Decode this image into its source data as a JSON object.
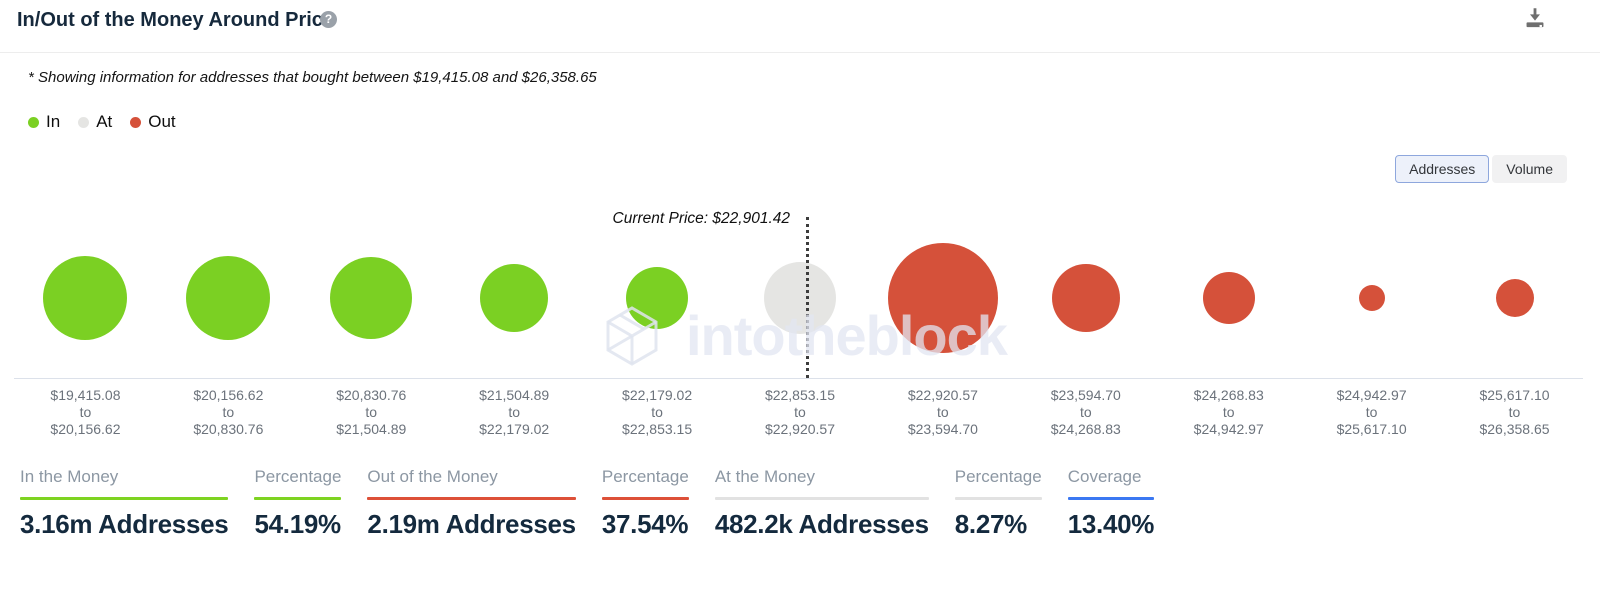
{
  "header": {
    "title": "In/Out of the Money Around Price",
    "help_icon": "question-mark",
    "download_icon": "download"
  },
  "subtitle": "* Showing information for addresses that bought between $19,415.08 and $26,358.65",
  "legend": {
    "items": [
      {
        "label": "In",
        "color": "#7bd023"
      },
      {
        "label": "At",
        "color": "#e5e5e3"
      },
      {
        "label": "Out",
        "color": "#d5513a"
      }
    ]
  },
  "view_toggle": {
    "options": [
      {
        "label": "Addresses",
        "selected": true
      },
      {
        "label": "Volume",
        "selected": false
      }
    ]
  },
  "chart": {
    "current_price_label": "Current Price: $22,901.42",
    "range_separator": "to",
    "watermark_text": "intotheblock"
  },
  "chart_data": {
    "type": "bubble",
    "x_axis": "price range (USD)",
    "value_encoding": "bubble size = number of addresses in range",
    "current_price": 22901.42,
    "status_colors": {
      "in": "#7bd023",
      "at": "#e5e5e3",
      "out": "#d5513a"
    },
    "series": [
      {
        "from": "$19,415.08",
        "to": "$20,156.62",
        "status": "in",
        "radius_px": 42
      },
      {
        "from": "$20,156.62",
        "to": "$20,830.76",
        "status": "in",
        "radius_px": 42
      },
      {
        "from": "$20,830.76",
        "to": "$21,504.89",
        "status": "in",
        "radius_px": 41
      },
      {
        "from": "$21,504.89",
        "to": "$22,179.02",
        "status": "in",
        "radius_px": 34
      },
      {
        "from": "$22,179.02",
        "to": "$22,853.15",
        "status": "in",
        "radius_px": 31
      },
      {
        "from": "$22,853.15",
        "to": "$22,920.57",
        "status": "at",
        "radius_px": 36
      },
      {
        "from": "$22,920.57",
        "to": "$23,594.70",
        "status": "out",
        "radius_px": 55
      },
      {
        "from": "$23,594.70",
        "to": "$24,268.83",
        "status": "out",
        "radius_px": 34
      },
      {
        "from": "$24,268.83",
        "to": "$24,942.97",
        "status": "out",
        "radius_px": 26
      },
      {
        "from": "$24,942.97",
        "to": "$25,617.10",
        "status": "out",
        "radius_px": 13
      },
      {
        "from": "$25,617.10",
        "to": "$26,358.65",
        "status": "out",
        "radius_px": 19
      }
    ]
  },
  "stats": [
    {
      "label": "In the Money",
      "value": "3.16m Addresses",
      "underline_color": "#7ed321"
    },
    {
      "label": "Percentage",
      "value": "54.19%",
      "underline_color": "#7ed321"
    },
    {
      "label": "Out of the Money",
      "value": "2.19m Addresses",
      "underline_color": "#dd5038"
    },
    {
      "label": "Percentage",
      "value": "37.54%",
      "underline_color": "#dd5038"
    },
    {
      "label": "At the Money",
      "value": "482.2k Addresses",
      "underline_color": "#e2e2e2"
    },
    {
      "label": "Percentage",
      "value": "8.27%",
      "underline_color": "#e2e2e2"
    },
    {
      "label": "Coverage",
      "value": "13.40%",
      "underline_color": "#3b78f2"
    }
  ]
}
